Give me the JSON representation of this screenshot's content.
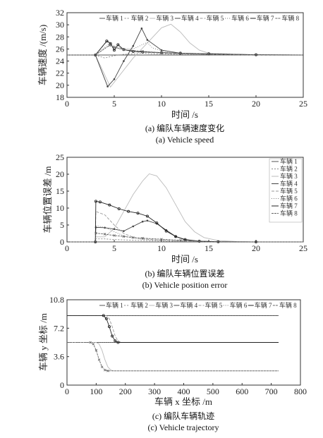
{
  "chart_data": [
    {
      "type": "line",
      "ylabel": "车辆速度 /(m/s)",
      "xlabel": "时间 /s",
      "caption_cn": "(a) 编队车辆速度变化",
      "caption_en": "(a) Vehicle speed",
      "xlim": [
        0,
        25
      ],
      "ylim": [
        18,
        32
      ],
      "xticks": [
        "0",
        "5",
        "10",
        "15",
        "20",
        "25"
      ],
      "yticks": [
        "18",
        "20",
        "22",
        "24",
        "26",
        "28",
        "30",
        "32"
      ],
      "legend_position": "top",
      "series": [
        {
          "name": "车辆 1",
          "x": [
            0,
            3,
            25
          ],
          "y": [
            25,
            25,
            25
          ]
        },
        {
          "name": "车辆 2",
          "x": [
            0,
            3,
            4,
            5,
            6,
            7,
            8,
            9,
            12,
            15,
            20,
            25
          ],
          "y": [
            25,
            25,
            24.5,
            24.9,
            25.1,
            25.2,
            25.3,
            25.2,
            25.1,
            25.05,
            25,
            25
          ]
        },
        {
          "name": "车辆 3",
          "x": [
            0,
            3,
            4.6,
            5.5,
            7,
            8.5,
            10,
            11,
            12,
            13,
            14,
            15,
            20,
            25
          ],
          "y": [
            25,
            25,
            19.7,
            21.5,
            24.5,
            27,
            29.5,
            30.1,
            28.8,
            27,
            25.8,
            25.3,
            25,
            25
          ]
        },
        {
          "name": "车辆 4",
          "x": [
            0,
            3,
            4.3,
            5,
            6,
            7,
            7.9,
            8.5,
            10,
            12,
            15,
            20,
            25
          ],
          "y": [
            25,
            25,
            19.8,
            21,
            24,
            26.5,
            29.4,
            27.5,
            25.8,
            25.3,
            25.1,
            25,
            25
          ]
        },
        {
          "name": "车辆 5",
          "x": [
            0,
            3,
            4.3,
            4.6,
            5,
            5.5,
            6,
            7,
            8,
            9,
            10,
            12,
            15,
            20,
            25
          ],
          "y": [
            25,
            25,
            27.4,
            27,
            26,
            26.3,
            25.9,
            25.6,
            25.5,
            25.4,
            25.3,
            25.2,
            25.1,
            25,
            25
          ]
        },
        {
          "name": "车辆 6",
          "x": [
            0,
            3,
            4.4,
            5,
            5.5,
            6,
            7,
            8.5,
            9,
            10,
            12,
            15,
            20,
            25
          ],
          "y": [
            25,
            25,
            26.8,
            26.5,
            26,
            26.1,
            26,
            27.1,
            26.2,
            25.7,
            25.3,
            25.1,
            25,
            25
          ]
        },
        {
          "name": "车辆 7",
          "x": [
            0,
            3,
            4.2,
            4.6,
            5,
            5.4,
            6,
            7,
            8,
            10,
            12,
            15,
            20,
            25
          ],
          "y": [
            25,
            25,
            27.3,
            26.9,
            25.8,
            26.7,
            25.9,
            25.6,
            25.5,
            25.4,
            25.3,
            25.2,
            25.05,
            25
          ]
        },
        {
          "name": "车辆 8",
          "x": [
            0,
            3,
            4.5,
            5,
            6,
            8,
            10,
            12,
            15,
            20,
            25
          ],
          "y": [
            25,
            25,
            26.6,
            26.3,
            25.9,
            25.6,
            25.4,
            25.3,
            25.2,
            25.05,
            25
          ]
        }
      ]
    },
    {
      "type": "line",
      "ylabel": "车辆位置误差 /m",
      "xlabel": "时间 /s",
      "caption_cn": "(b) 编队车辆位置误差",
      "caption_en": "(b) Vehicle position error",
      "xlim": [
        0,
        25
      ],
      "ylim": [
        0,
        25
      ],
      "xticks": [
        "0",
        "5",
        "10",
        "15",
        "20",
        "25"
      ],
      "yticks": [
        "0",
        "5",
        "10",
        "15",
        "20",
        "25"
      ],
      "legend_position": "right",
      "series": [
        {
          "name": "车辆 1",
          "x": [
            0,
            3,
            25
          ],
          "y": [
            0,
            0,
            0
          ]
        },
        {
          "name": "车辆 2",
          "x": [
            0,
            3,
            3.05,
            4,
            5,
            6,
            8,
            10,
            12,
            15,
            25
          ],
          "y": [
            0,
            0,
            0.9,
            0.9,
            0.7,
            0.6,
            0.4,
            0.25,
            0.15,
            0.05,
            0
          ]
        },
        {
          "name": "车辆 3",
          "x": [
            0,
            3,
            3.05,
            4,
            5,
            6,
            7,
            8,
            8.7,
            9.5,
            10.5,
            11.5,
            12.5,
            13.5,
            14.5,
            16,
            18,
            20,
            25
          ],
          "y": [
            0,
            0,
            1.5,
            1.5,
            4,
            9,
            14,
            18,
            20.1,
            19.5,
            16,
            11,
            6,
            3,
            1.3,
            0.4,
            0.1,
            0,
            0
          ]
        },
        {
          "name": "车辆 4",
          "x": [
            0,
            3,
            3.05,
            4,
            5,
            6,
            7,
            8,
            8.5,
            9.5,
            10.5,
            11.5,
            12.5,
            14,
            16,
            20,
            25
          ],
          "y": [
            0,
            0,
            4.3,
            4.2,
            3.8,
            3.2,
            4.6,
            6,
            6.3,
            5.4,
            3.5,
            1.6,
            0.6,
            0.2,
            0.05,
            0,
            0
          ]
        },
        {
          "name": "车辆 5",
          "x": [
            0,
            3,
            3.05,
            4,
            5,
            6,
            7,
            8,
            10,
            12,
            14,
            16,
            20,
            25
          ],
          "y": [
            0,
            0,
            9,
            8,
            5,
            2.5,
            1.4,
            0.9,
            0.5,
            0.3,
            0.15,
            0.05,
            0,
            0
          ]
        },
        {
          "name": "车辆 6",
          "x": [
            0,
            3,
            3.05,
            4,
            5,
            6,
            7,
            8,
            10,
            12,
            15,
            20,
            25
          ],
          "y": [
            0,
            0,
            4.8,
            4.3,
            3,
            1.8,
            1.1,
            0.7,
            0.4,
            0.2,
            0.05,
            0,
            0
          ]
        },
        {
          "name": "车辆 7",
          "x": [
            0,
            3,
            3.05,
            3.5,
            4.5,
            5.5,
            6.5,
            7.5,
            8.5,
            9.5,
            10.5,
            11.5,
            12.5,
            14,
            16,
            20,
            25
          ],
          "y": [
            0,
            0,
            12,
            11.8,
            10.9,
            9.8,
            9,
            8.5,
            7.6,
            5.6,
            3.2,
            1.6,
            0.7,
            0.2,
            0.05,
            0,
            0
          ]
        },
        {
          "name": "车辆 8",
          "x": [
            0,
            3,
            3.05,
            4,
            5,
            6,
            7,
            8,
            10,
            12,
            14,
            16,
            20,
            25
          ],
          "y": [
            0,
            0,
            2.6,
            2.3,
            1.9,
            1.6,
            1.3,
            1.1,
            0.8,
            0.5,
            0.25,
            0.1,
            0,
            0
          ]
        }
      ]
    },
    {
      "type": "line",
      "ylabel": "车辆 y 坐标 /m",
      "xlabel": "车辆 x 坐标 /m",
      "caption_cn": "(c) 编队车辆轨迹",
      "caption_en": "(c) Vehicle trajectory",
      "xlim": [
        0,
        800
      ],
      "ylim": [
        0,
        10.8
      ],
      "xticks": [
        "0",
        "100",
        "200",
        "300",
        "400",
        "500",
        "600",
        "700",
        "800"
      ],
      "yticks": [
        "0",
        "3.6",
        "7.2",
        "10.8"
      ],
      "legend_position": "top",
      "series": [
        {
          "name": "车辆 1",
          "x": [
            0,
            725
          ],
          "y": [
            5.4,
            5.4
          ]
        },
        {
          "name": "车辆 2",
          "x": [
            0,
            725
          ],
          "y": [
            8.8,
            8.8
          ]
        },
        {
          "name": "车辆 3",
          "x": [
            0,
            100,
            110,
            120,
            130,
            140,
            150,
            160,
            725
          ],
          "y": [
            5.4,
            5.4,
            5.2,
            4.4,
            3.2,
            2.3,
            1.9,
            1.8,
            1.8
          ]
        },
        {
          "name": "车辆 4",
          "x": [
            0,
            725
          ],
          "y": [
            8.8,
            8.8
          ]
        },
        {
          "name": "车辆 5",
          "x": [
            0,
            135,
            145,
            155,
            165,
            175,
            185,
            725
          ],
          "y": [
            8.8,
            8.8,
            8.4,
            7.4,
            6.2,
            5.6,
            5.4,
            5.4
          ]
        },
        {
          "name": "车辆 6",
          "x": [
            0,
            725
          ],
          "y": [
            5.4,
            5.4
          ]
        },
        {
          "name": "车辆 7",
          "x": [
            0,
            125,
            135,
            145,
            155,
            165,
            175,
            725
          ],
          "y": [
            8.8,
            8.8,
            8.4,
            7.4,
            6.2,
            5.6,
            5.4,
            5.4
          ]
        },
        {
          "name": "车辆 8",
          "x": [
            0,
            80,
            90,
            100,
            110,
            120,
            130,
            140,
            725
          ],
          "y": [
            5.4,
            5.4,
            5.2,
            4.4,
            3.2,
            2.3,
            1.9,
            1.8,
            1.8
          ]
        }
      ]
    }
  ]
}
